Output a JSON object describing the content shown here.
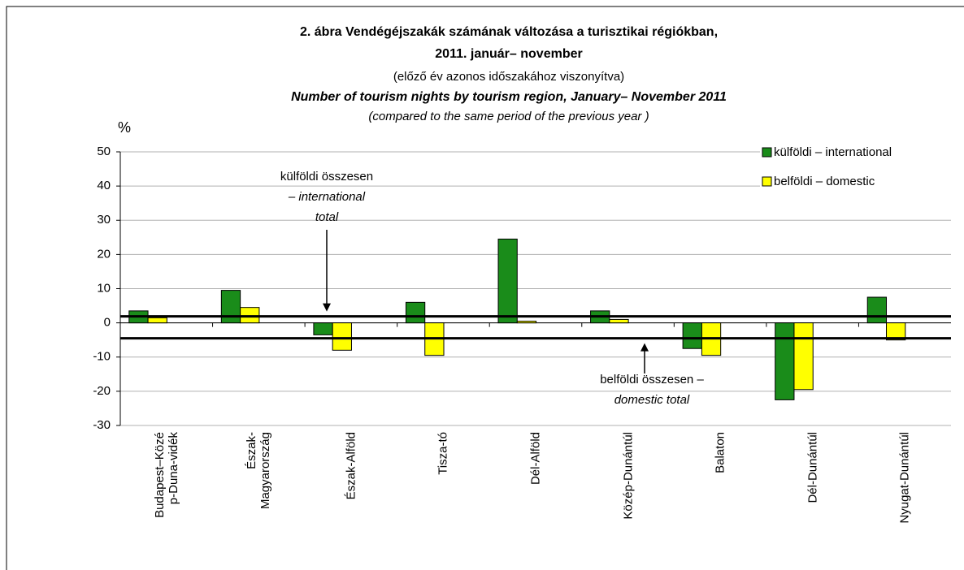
{
  "chart_data": {
    "type": "bar",
    "title": "2. ábra Vendégéjszakák számának változása a turisztikai régiókban,",
    "title_line2": "2011. január– november",
    "subtitle": "(előző év azonos időszakához viszonyítva)",
    "title_en": "Number of tourism nights by tourism region, January– November 2011",
    "subtitle_en": "(compared to the same period of the previous year )",
    "ylabel": "%",
    "categories": [
      "Budapest–Közé\np-Duna-vidék",
      "Észak-\nMagyarország",
      "Észak-Alföld",
      "Tisza-tó",
      "Dél-Alföld",
      "Közép-Dunántúl",
      "Balaton",
      "Dél-Dunántúl",
      "Nyugat-Dunántúl"
    ],
    "series": [
      {
        "name": "külföldi – international",
        "color": "#1a8c1a",
        "values": [
          3.5,
          9.5,
          -3.5,
          6,
          24.5,
          3.5,
          -7.5,
          -22.5,
          7.5
        ]
      },
      {
        "name": "belföldi – domestic",
        "color": "#ffff00",
        "values": [
          1.5,
          4.5,
          -8,
          -9.5,
          0.5,
          1,
          -9.5,
          -19.5,
          -5
        ]
      }
    ],
    "reference_lines": [
      {
        "value": 1.9,
        "lines": [
          "külföldi összesen",
          "– international",
          "total"
        ]
      },
      {
        "value": -4.5,
        "lines": [
          "belföldi összesen –",
          "domestic total"
        ]
      }
    ],
    "ylim": [
      -30,
      50
    ],
    "yticks": [
      -30,
      -20,
      -10,
      0,
      10,
      20,
      30,
      40,
      50
    ],
    "grid": true,
    "legend": "top-right"
  }
}
